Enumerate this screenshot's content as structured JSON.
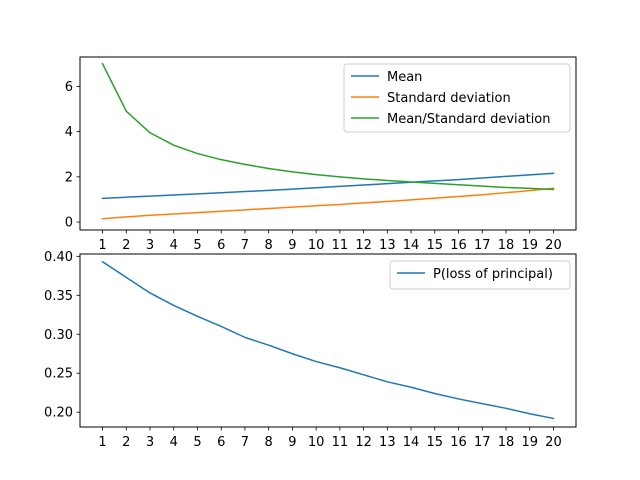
{
  "chart_data": [
    {
      "type": "line",
      "x": [
        1,
        2,
        3,
        4,
        5,
        6,
        7,
        8,
        9,
        10,
        11,
        12,
        13,
        14,
        15,
        16,
        17,
        18,
        19,
        20
      ],
      "xticks": [
        "1",
        "2",
        "3",
        "4",
        "5",
        "6",
        "7",
        "8",
        "9",
        "10",
        "11",
        "12",
        "13",
        "14",
        "15",
        "16",
        "17",
        "18",
        "19",
        "20"
      ],
      "yticks": [
        "0",
        "2",
        "4",
        "6"
      ],
      "ylim": [
        -0.35,
        7.3
      ],
      "grid": false,
      "legend_position": "top-right",
      "series": [
        {
          "name": "Mean",
          "color": "#1f77b4",
          "values": [
            1.05,
            1.1,
            1.15,
            1.2,
            1.25,
            1.3,
            1.35,
            1.4,
            1.46,
            1.52,
            1.58,
            1.64,
            1.7,
            1.76,
            1.82,
            1.88,
            1.95,
            2.02,
            2.09,
            2.16
          ]
        },
        {
          "name": "Standard deviation",
          "color": "#ff7f0e",
          "values": [
            0.15,
            0.23,
            0.3,
            0.36,
            0.42,
            0.48,
            0.54,
            0.6,
            0.66,
            0.72,
            0.78,
            0.85,
            0.91,
            0.98,
            1.06,
            1.13,
            1.21,
            1.3,
            1.39,
            1.5
          ]
        },
        {
          "name": "Mean/Standard deviation",
          "color": "#2ca02c",
          "values": [
            7.0,
            4.9,
            3.95,
            3.4,
            3.03,
            2.76,
            2.55,
            2.37,
            2.22,
            2.1,
            2.0,
            1.91,
            1.84,
            1.77,
            1.71,
            1.65,
            1.59,
            1.53,
            1.49,
            1.44
          ]
        }
      ]
    },
    {
      "type": "line",
      "x": [
        1,
        2,
        3,
        4,
        5,
        6,
        7,
        8,
        9,
        10,
        11,
        12,
        13,
        14,
        15,
        16,
        17,
        18,
        19,
        20
      ],
      "xticks": [
        "1",
        "2",
        "3",
        "4",
        "5",
        "6",
        "7",
        "8",
        "9",
        "10",
        "11",
        "12",
        "13",
        "14",
        "15",
        "16",
        "17",
        "18",
        "19",
        "20"
      ],
      "yticks": [
        "0.20",
        "0.25",
        "0.30",
        "0.35",
        "0.40"
      ],
      "ylim": [
        0.181,
        0.403
      ],
      "grid": false,
      "legend_position": "top-right",
      "series": [
        {
          "name": "P(loss of principal)",
          "color": "#1f77b4",
          "values": [
            0.393,
            0.373,
            0.353,
            0.337,
            0.323,
            0.31,
            0.296,
            0.286,
            0.275,
            0.265,
            0.257,
            0.248,
            0.239,
            0.232,
            0.224,
            0.217,
            0.211,
            0.205,
            0.198,
            0.192
          ]
        }
      ]
    }
  ]
}
